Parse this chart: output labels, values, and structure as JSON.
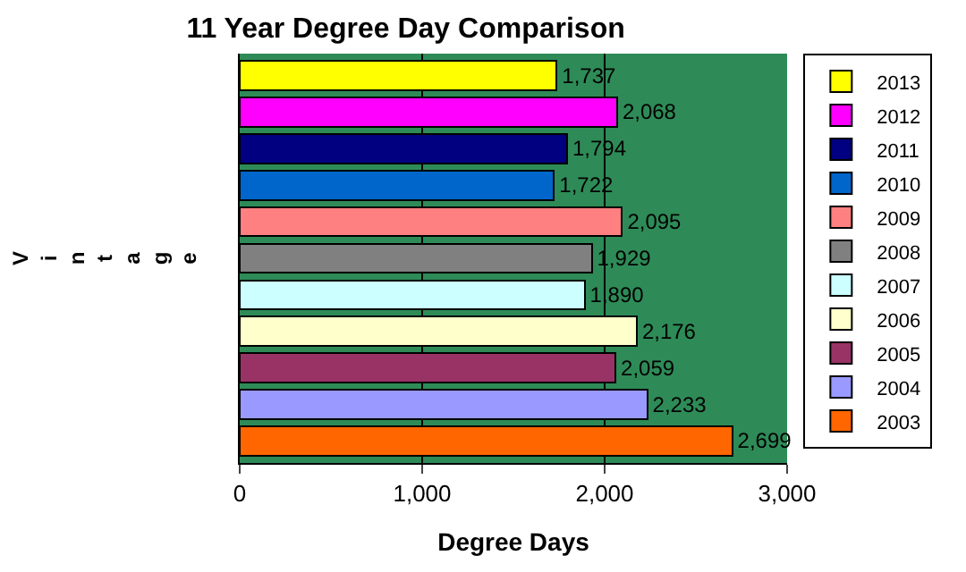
{
  "chart_data": {
    "type": "bar",
    "orientation": "horizontal",
    "stacked": true,
    "title": "11 Year Degree Day Comparison",
    "xlabel": "Degree Days",
    "ylabel": "Vintage",
    "categories": [
      null,
      null,
      null,
      null,
      null,
      null,
      null,
      null,
      null,
      null,
      null
    ],
    "series": [
      {
        "name": "2013",
        "color": "#ffff00",
        "values": [
          1737,
          null,
          null,
          null,
          null,
          null,
          null,
          null,
          null,
          null,
          null
        ],
        "value_labels": [
          "1,737",
          null,
          null,
          null,
          null,
          null,
          null,
          null,
          null,
          null,
          null
        ]
      },
      {
        "name": "2012",
        "color": "#ff00ff",
        "values": [
          null,
          2068,
          null,
          null,
          null,
          null,
          null,
          null,
          null,
          null,
          null
        ],
        "value_labels": [
          null,
          "2,068",
          null,
          null,
          null,
          null,
          null,
          null,
          null,
          null,
          null
        ]
      },
      {
        "name": "2011",
        "color": "#000080",
        "values": [
          null,
          null,
          1794,
          null,
          null,
          null,
          null,
          null,
          null,
          null,
          null
        ],
        "value_labels": [
          null,
          null,
          "1,794",
          null,
          null,
          null,
          null,
          null,
          null,
          null,
          null
        ]
      },
      {
        "name": "2010",
        "color": "#0066cc",
        "values": [
          null,
          null,
          null,
          1722,
          null,
          null,
          null,
          null,
          null,
          null,
          null
        ],
        "value_labels": [
          null,
          null,
          null,
          "1,722",
          null,
          null,
          null,
          null,
          null,
          null,
          null
        ]
      },
      {
        "name": "2009",
        "color": "#ff8080",
        "values": [
          null,
          null,
          null,
          null,
          2095,
          null,
          null,
          null,
          null,
          null,
          null
        ],
        "value_labels": [
          null,
          null,
          null,
          null,
          "2,095",
          null,
          null,
          null,
          null,
          null,
          null
        ]
      },
      {
        "name": "2008",
        "color": "#808080",
        "values": [
          null,
          null,
          null,
          null,
          null,
          1929,
          null,
          null,
          null,
          null,
          null
        ],
        "value_labels": [
          null,
          null,
          null,
          null,
          null,
          "1,929",
          null,
          null,
          null,
          null,
          null
        ]
      },
      {
        "name": "2007",
        "color": "#ccffff",
        "values": [
          null,
          null,
          null,
          null,
          null,
          null,
          1890,
          null,
          null,
          null,
          null
        ],
        "value_labels": [
          null,
          null,
          null,
          null,
          null,
          null,
          "1,890",
          null,
          null,
          null,
          null
        ]
      },
      {
        "name": "2006",
        "color": "#ffffcc",
        "values": [
          null,
          null,
          null,
          null,
          null,
          null,
          null,
          2176,
          null,
          null,
          null
        ],
        "value_labels": [
          null,
          null,
          null,
          null,
          null,
          null,
          null,
          "2,176",
          null,
          null,
          null
        ]
      },
      {
        "name": "2005",
        "color": "#993366",
        "values": [
          null,
          null,
          null,
          null,
          null,
          null,
          null,
          null,
          2059,
          null,
          null
        ],
        "value_labels": [
          null,
          null,
          null,
          null,
          null,
          null,
          null,
          null,
          "2,059",
          null,
          null
        ]
      },
      {
        "name": "2004",
        "color": "#9999ff",
        "values": [
          null,
          null,
          null,
          null,
          null,
          null,
          null,
          null,
          null,
          2233,
          null
        ],
        "value_labels": [
          null,
          null,
          null,
          null,
          null,
          null,
          null,
          null,
          null,
          "2,233",
          null
        ]
      },
      {
        "name": "2003",
        "color": "#ff6600",
        "values": [
          null,
          null,
          null,
          null,
          null,
          null,
          null,
          null,
          null,
          null,
          2699
        ],
        "value_labels": [
          null,
          null,
          null,
          null,
          null,
          null,
          null,
          null,
          null,
          null,
          "2,699"
        ]
      }
    ],
    "xlim": [
      0,
      3000
    ],
    "xticks": [
      0,
      {
        "value": 1000,
        "label": "1,000"
      },
      {
        "value": 2000,
        "label": "2,000"
      },
      {
        "value": 3000,
        "label": "3,000"
      }
    ],
    "grid": "x",
    "legend": "right",
    "tick_labels": "x"
  }
}
